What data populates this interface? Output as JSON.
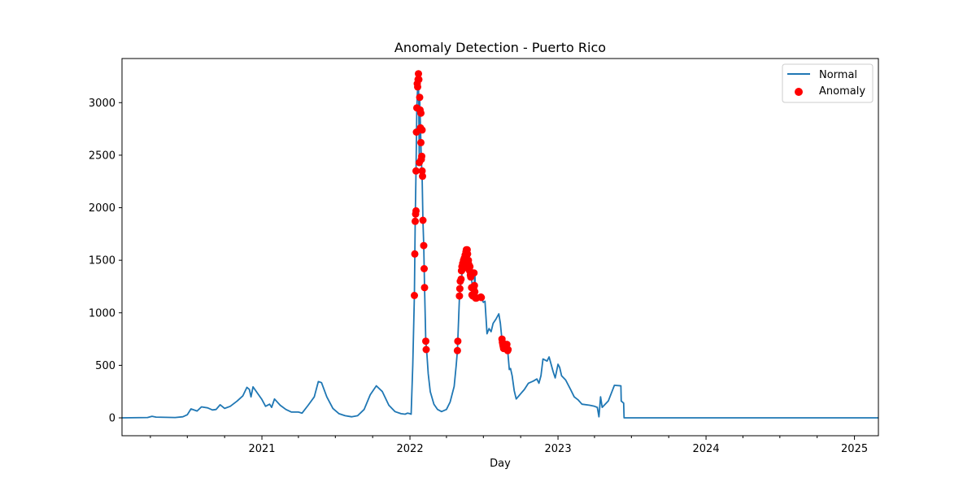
{
  "chart_data": {
    "type": "line",
    "title": "Anomaly Detection - Puerto Rico",
    "xlabel": "Day",
    "ylabel": "",
    "ylim": [
      -170,
      3420
    ],
    "xlim": [
      "2020-01-22",
      "2025-03-01"
    ],
    "grid": false,
    "legend_position": "top-right",
    "x_ticks": [
      {
        "date": "2021-01-01",
        "label": "2021"
      },
      {
        "date": "2022-01-01",
        "label": "2022"
      },
      {
        "date": "2023-01-01",
        "label": "2023"
      },
      {
        "date": "2024-01-01",
        "label": "2024"
      },
      {
        "date": "2025-01-01",
        "label": "2025"
      }
    ],
    "y_ticks": [
      0,
      500,
      1000,
      1500,
      2000,
      2500,
      3000
    ],
    "series": [
      {
        "name": "Normal",
        "kind": "line",
        "color": "#1f77b4",
        "points": [
          [
            "2020-01-22",
            0
          ],
          [
            "2020-03-25",
            3
          ],
          [
            "2020-04-05",
            15
          ],
          [
            "2020-04-15",
            7
          ],
          [
            "2020-06-01",
            3
          ],
          [
            "2020-06-20",
            10
          ],
          [
            "2020-07-01",
            30
          ],
          [
            "2020-07-10",
            85
          ],
          [
            "2020-07-25",
            65
          ],
          [
            "2020-08-05",
            105
          ],
          [
            "2020-08-20",
            95
          ],
          [
            "2020-09-01",
            75
          ],
          [
            "2020-09-10",
            80
          ],
          [
            "2020-09-20",
            125
          ],
          [
            "2020-10-01",
            90
          ],
          [
            "2020-10-15",
            110
          ],
          [
            "2020-11-01",
            160
          ],
          [
            "2020-11-15",
            210
          ],
          [
            "2020-11-25",
            290
          ],
          [
            "2020-12-01",
            270
          ],
          [
            "2020-12-05",
            200
          ],
          [
            "2020-12-10",
            295
          ],
          [
            "2020-12-20",
            240
          ],
          [
            "2021-01-01",
            175
          ],
          [
            "2021-01-10",
            110
          ],
          [
            "2021-01-20",
            130
          ],
          [
            "2021-01-25",
            100
          ],
          [
            "2021-02-01",
            180
          ],
          [
            "2021-02-15",
            120
          ],
          [
            "2021-03-01",
            80
          ],
          [
            "2021-03-15",
            55
          ],
          [
            "2021-04-01",
            55
          ],
          [
            "2021-04-10",
            45
          ],
          [
            "2021-04-25",
            120
          ],
          [
            "2021-05-10",
            200
          ],
          [
            "2021-05-20",
            345
          ],
          [
            "2021-05-28",
            335
          ],
          [
            "2021-06-10",
            200
          ],
          [
            "2021-06-25",
            90
          ],
          [
            "2021-07-10",
            40
          ],
          [
            "2021-07-25",
            20
          ],
          [
            "2021-08-10",
            10
          ],
          [
            "2021-08-25",
            20
          ],
          [
            "2021-09-10",
            80
          ],
          [
            "2021-09-25",
            220
          ],
          [
            "2021-10-10",
            305
          ],
          [
            "2021-10-25",
            250
          ],
          [
            "2021-11-10",
            120
          ],
          [
            "2021-11-25",
            60
          ],
          [
            "2021-12-10",
            40
          ],
          [
            "2021-12-20",
            35
          ],
          [
            "2021-12-26",
            45
          ],
          [
            "2022-01-01",
            40
          ],
          [
            "2022-01-04",
            35
          ],
          [
            "2022-01-08",
            500
          ],
          [
            "2022-01-12",
            1165
          ],
          [
            "2022-01-14",
            1870
          ],
          [
            "2022-01-16",
            2350
          ],
          [
            "2022-01-18",
            2950
          ],
          [
            "2022-01-20",
            3150
          ],
          [
            "2022-01-22",
            3275
          ],
          [
            "2022-01-24",
            2430
          ],
          [
            "2022-01-25",
            3050
          ],
          [
            "2022-01-26",
            2900
          ],
          [
            "2022-01-28",
            2620
          ],
          [
            "2022-01-29",
            2460
          ],
          [
            "2022-01-31",
            2300
          ],
          [
            "2022-02-02",
            1880
          ],
          [
            "2022-02-04",
            1640
          ],
          [
            "2022-02-06",
            1240
          ],
          [
            "2022-02-09",
            730
          ],
          [
            "2022-02-11",
            650
          ],
          [
            "2022-02-15",
            420
          ],
          [
            "2022-02-20",
            250
          ],
          [
            "2022-03-01",
            130
          ],
          [
            "2022-03-10",
            80
          ],
          [
            "2022-03-20",
            60
          ],
          [
            "2022-04-01",
            80
          ],
          [
            "2022-04-10",
            150
          ],
          [
            "2022-04-20",
            300
          ],
          [
            "2022-04-25",
            500
          ],
          [
            "2022-04-28",
            640
          ],
          [
            "2022-05-03",
            1150
          ],
          [
            "2022-05-07",
            1300
          ],
          [
            "2022-05-12",
            1450
          ],
          [
            "2022-05-18",
            1530
          ],
          [
            "2022-05-22",
            1600
          ],
          [
            "2022-05-26",
            1500
          ],
          [
            "2022-05-30",
            1420
          ],
          [
            "2022-06-02",
            1340
          ],
          [
            "2022-06-05",
            1160
          ],
          [
            "2022-06-08",
            1240
          ],
          [
            "2022-06-10",
            1380
          ],
          [
            "2022-06-12",
            1180
          ],
          [
            "2022-06-15",
            1140
          ],
          [
            "2022-06-20",
            1170
          ],
          [
            "2022-06-25",
            1150
          ],
          [
            "2022-07-01",
            1100
          ],
          [
            "2022-07-05",
            1110
          ],
          [
            "2022-07-10",
            800
          ],
          [
            "2022-07-15",
            850
          ],
          [
            "2022-07-20",
            820
          ],
          [
            "2022-07-25",
            900
          ],
          [
            "2022-08-01",
            940
          ],
          [
            "2022-08-08",
            990
          ],
          [
            "2022-08-12",
            900
          ],
          [
            "2022-08-16",
            740
          ],
          [
            "2022-08-20",
            680
          ],
          [
            "2022-08-25",
            700
          ],
          [
            "2022-08-30",
            640
          ],
          [
            "2022-09-03",
            460
          ],
          [
            "2022-09-06",
            470
          ],
          [
            "2022-09-10",
            400
          ],
          [
            "2022-09-15",
            260
          ],
          [
            "2022-09-20",
            180
          ],
          [
            "2022-10-01",
            230
          ],
          [
            "2022-10-10",
            270
          ],
          [
            "2022-10-20",
            330
          ],
          [
            "2022-11-01",
            350
          ],
          [
            "2022-11-10",
            370
          ],
          [
            "2022-11-15",
            330
          ],
          [
            "2022-11-20",
            400
          ],
          [
            "2022-11-25",
            560
          ],
          [
            "2022-12-05",
            540
          ],
          [
            "2022-12-10",
            580
          ],
          [
            "2022-12-15",
            510
          ],
          [
            "2022-12-20",
            440
          ],
          [
            "2022-12-25",
            380
          ],
          [
            "2023-01-01",
            510
          ],
          [
            "2023-01-05",
            480
          ],
          [
            "2023-01-10",
            400
          ],
          [
            "2023-01-20",
            360
          ],
          [
            "2023-02-01",
            270
          ],
          [
            "2023-02-10",
            200
          ],
          [
            "2023-02-20",
            170
          ],
          [
            "2023-03-01",
            130
          ],
          [
            "2023-03-20",
            120
          ],
          [
            "2023-04-01",
            110
          ],
          [
            "2023-04-08",
            100
          ],
          [
            "2023-04-12",
            10
          ],
          [
            "2023-04-16",
            200
          ],
          [
            "2023-04-20",
            100
          ],
          [
            "2023-04-25",
            120
          ],
          [
            "2023-05-05",
            160
          ],
          [
            "2023-05-15",
            260
          ],
          [
            "2023-05-20",
            310
          ],
          [
            "2023-06-05",
            305
          ],
          [
            "2023-06-06",
            160
          ],
          [
            "2023-06-12",
            140
          ],
          [
            "2023-06-13",
            0
          ],
          [
            "2025-03-01",
            0
          ]
        ]
      },
      {
        "name": "Anomaly",
        "kind": "scatter",
        "color": "#ff0000",
        "points": [
          [
            "2022-01-12",
            1165
          ],
          [
            "2022-01-13",
            1560
          ],
          [
            "2022-01-14",
            1870
          ],
          [
            "2022-01-15",
            1940
          ],
          [
            "2022-01-16",
            2350
          ],
          [
            "2022-01-16",
            1970
          ],
          [
            "2022-01-17",
            2720
          ],
          [
            "2022-01-18",
            2950
          ],
          [
            "2022-01-19",
            3180
          ],
          [
            "2022-01-20",
            3150
          ],
          [
            "2022-01-21",
            3220
          ],
          [
            "2022-01-22",
            3275
          ],
          [
            "2022-01-23",
            3220
          ],
          [
            "2022-01-24",
            2430
          ],
          [
            "2022-01-25",
            3050
          ],
          [
            "2022-01-26",
            2930
          ],
          [
            "2022-01-27",
            2760
          ],
          [
            "2022-01-28",
            2620
          ],
          [
            "2022-01-28",
            2900
          ],
          [
            "2022-01-29",
            2460
          ],
          [
            "2022-01-30",
            2490
          ],
          [
            "2022-01-31",
            2350
          ],
          [
            "2022-01-31",
            2740
          ],
          [
            "2022-02-01",
            2300
          ],
          [
            "2022-02-02",
            1880
          ],
          [
            "2022-02-04",
            1640
          ],
          [
            "2022-02-05",
            1420
          ],
          [
            "2022-02-06",
            1240
          ],
          [
            "2022-02-09",
            730
          ],
          [
            "2022-02-10",
            650
          ],
          [
            "2022-04-28",
            640
          ],
          [
            "2022-04-29",
            730
          ],
          [
            "2022-05-03",
            1160
          ],
          [
            "2022-05-04",
            1230
          ],
          [
            "2022-05-05",
            1300
          ],
          [
            "2022-05-07",
            1320
          ],
          [
            "2022-05-08",
            1400
          ],
          [
            "2022-05-09",
            1440
          ],
          [
            "2022-05-11",
            1470
          ],
          [
            "2022-05-12",
            1420
          ],
          [
            "2022-05-13",
            1500
          ],
          [
            "2022-05-15",
            1520
          ],
          [
            "2022-05-16",
            1440
          ],
          [
            "2022-05-17",
            1550
          ],
          [
            "2022-05-18",
            1530
          ],
          [
            "2022-05-19",
            1580
          ],
          [
            "2022-05-20",
            1600
          ],
          [
            "2022-05-21",
            1550
          ],
          [
            "2022-05-22",
            1600
          ],
          [
            "2022-05-23",
            1560
          ],
          [
            "2022-05-24",
            1480
          ],
          [
            "2022-05-25",
            1500
          ],
          [
            "2022-05-26",
            1460
          ],
          [
            "2022-05-27",
            1420
          ],
          [
            "2022-05-28",
            1400
          ],
          [
            "2022-05-29",
            1440
          ],
          [
            "2022-05-30",
            1360
          ],
          [
            "2022-05-31",
            1340
          ],
          [
            "2022-06-02",
            1240
          ],
          [
            "2022-06-03",
            1170
          ],
          [
            "2022-06-05",
            1160
          ],
          [
            "2022-06-07",
            1230
          ],
          [
            "2022-06-08",
            1380
          ],
          [
            "2022-06-09",
            1260
          ],
          [
            "2022-06-10",
            1200
          ],
          [
            "2022-06-11",
            1150
          ],
          [
            "2022-06-12",
            1140
          ],
          [
            "2022-06-14",
            1140
          ],
          [
            "2022-06-25",
            1150
          ],
          [
            "2022-06-26",
            1145
          ],
          [
            "2022-08-16",
            750
          ],
          [
            "2022-08-17",
            720
          ],
          [
            "2022-08-18",
            700
          ],
          [
            "2022-08-19",
            680
          ],
          [
            "2022-08-20",
            660
          ],
          [
            "2022-08-22",
            700
          ],
          [
            "2022-08-25",
            690
          ],
          [
            "2022-08-27",
            660
          ],
          [
            "2022-08-28",
            700
          ],
          [
            "2022-08-30",
            640
          ],
          [
            "2022-08-31",
            650
          ]
        ]
      }
    ]
  }
}
